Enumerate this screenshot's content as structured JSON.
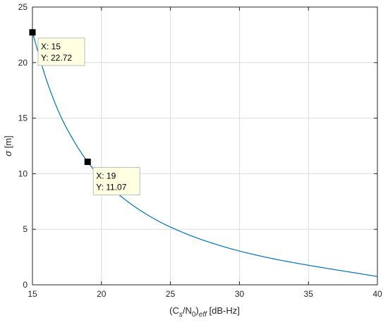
{
  "chart_data": {
    "type": "line",
    "xlabel": "(Cs/N0)eff [dB-Hz]",
    "xlabel_parts": {
      "open": "(C",
      "sub1": "s",
      "mid": "/N",
      "sub2": "0",
      "close": ")",
      "sub3": "eff",
      "unit": " [dB-Hz]"
    },
    "ylabel": "σ [m]",
    "ylabel_parts": {
      "sym": "σ",
      "unit": " [m]"
    },
    "xlim": [
      15,
      40
    ],
    "ylim": [
      0,
      25
    ],
    "xticks": [
      15,
      20,
      25,
      30,
      35,
      40
    ],
    "yticks": [
      0,
      5,
      10,
      15,
      20,
      25
    ],
    "grid": true,
    "series": [
      {
        "color": "#0072BD",
        "x": [
          15,
          16,
          17,
          18,
          19,
          20,
          21,
          22,
          23,
          24,
          25,
          26,
          27,
          28,
          29,
          30,
          31,
          32,
          33,
          34,
          35,
          36,
          37,
          38,
          39,
          40
        ],
        "y": [
          22.72,
          18.5,
          15.3,
          12.95,
          11.07,
          9.6,
          8.4,
          7.4,
          6.55,
          5.82,
          5.2,
          4.66,
          4.18,
          3.76,
          3.38,
          3.04,
          2.74,
          2.46,
          2.21,
          1.98,
          1.76,
          1.55,
          1.35,
          1.15,
          0.95,
          0.75
        ]
      }
    ],
    "datatips": [
      {
        "x": 15,
        "y": 22.72,
        "x_text": "X: 15",
        "y_text": "Y: 22.72"
      },
      {
        "x": 19,
        "y": 11.07,
        "x_text": "X: 19",
        "y_text": "Y: 11.07"
      }
    ]
  }
}
